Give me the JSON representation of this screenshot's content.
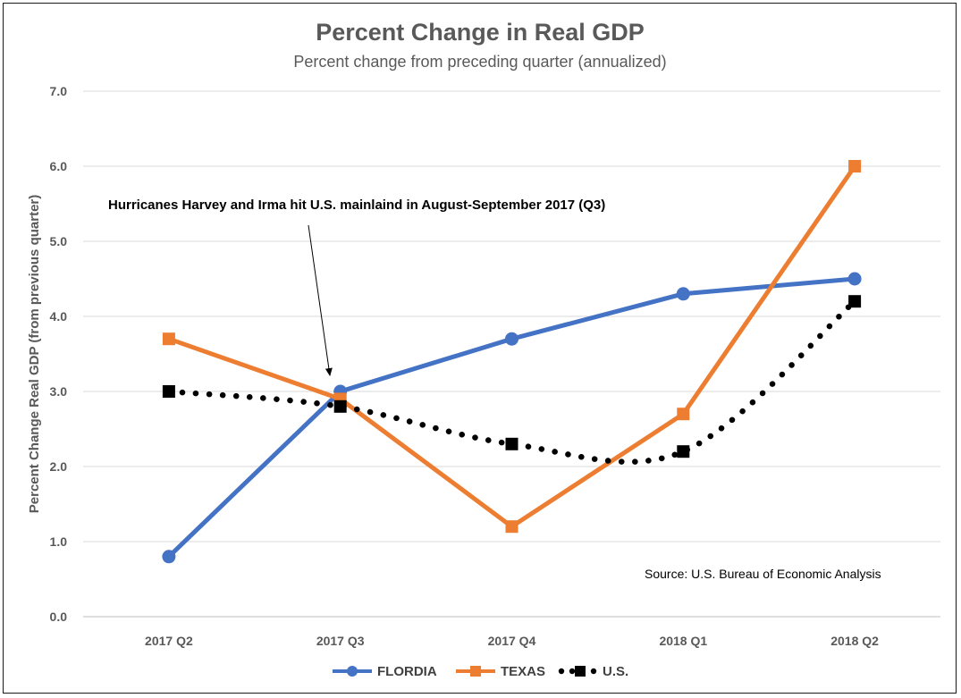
{
  "chart_data": {
    "type": "line",
    "title": "Percent Change in Real GDP",
    "subtitle": "Percent change from preceding quarter (annualized)",
    "xlabel": "",
    "ylabel": "Percent Change Real GDP (from previous quarter)",
    "categories": [
      "2017 Q2",
      "2017 Q3",
      "2017 Q4",
      "2018 Q1",
      "2018 Q2"
    ],
    "ylim": [
      0,
      7
    ],
    "yticks": [
      "0.0",
      "1.0",
      "2.0",
      "3.0",
      "4.0",
      "5.0",
      "6.0",
      "7.0"
    ],
    "grid": true,
    "legend_position": "bottom",
    "series": [
      {
        "name": "FLORDIA",
        "values": [
          0.8,
          3.0,
          3.7,
          4.3,
          4.5
        ],
        "color": "#4472C4",
        "marker": "circle",
        "style": "solid"
      },
      {
        "name": "TEXAS",
        "values": [
          3.7,
          2.9,
          1.2,
          2.7,
          6.0
        ],
        "color": "#ED7D31",
        "marker": "square",
        "style": "solid"
      },
      {
        "name": "U.S.",
        "values": [
          3.0,
          2.8,
          2.3,
          2.2,
          4.2
        ],
        "color": "#000000",
        "marker": "square",
        "style": "dotted"
      }
    ],
    "annotations": [
      {
        "text": "Hurricanes Harvey and  Irma hit U.S. mainlaind in August-September 2017 (Q3)",
        "points_to": "2017 Q3"
      },
      {
        "text": "Source: U.S. Bureau of Economic Analysis"
      }
    ]
  }
}
